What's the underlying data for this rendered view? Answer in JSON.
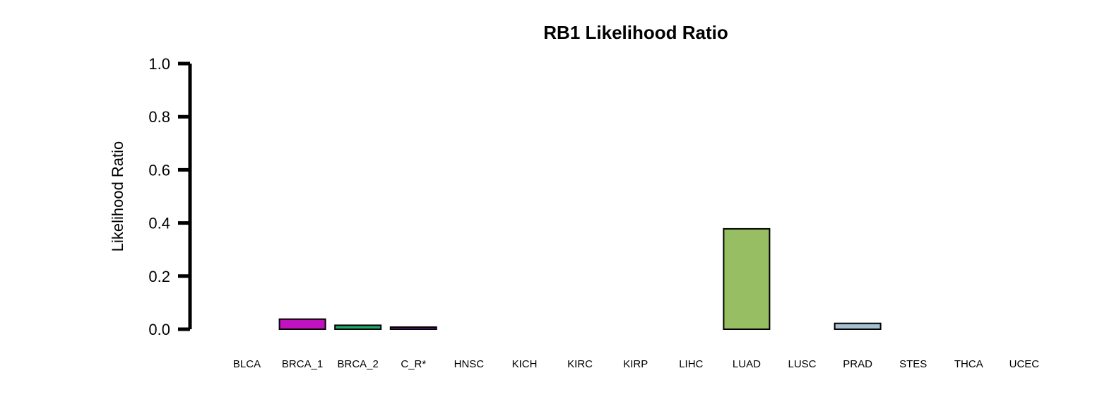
{
  "chart_data": {
    "type": "bar",
    "title": "RB1 Likelihood Ratio",
    "xlabel": "",
    "ylabel": "Likelihood Ratio",
    "ylim": [
      0,
      1.0
    ],
    "yticks": [
      "0.0",
      "0.2",
      "0.4",
      "0.6",
      "0.8",
      "1.0"
    ],
    "grid": false,
    "categories": [
      "BLCA",
      "BRCA_1",
      "BRCA_2",
      "C_R*",
      "HNSC",
      "KICH",
      "KIRC",
      "KIRP",
      "LIHC",
      "LUAD",
      "LUSC",
      "PRAD",
      "STES",
      "THCA",
      "UCEC"
    ],
    "values": [
      0.0,
      0.038,
      0.015,
      0.008,
      0.0,
      0.0,
      0.0,
      0.0,
      0.0,
      0.378,
      0.0,
      0.022,
      0.0,
      0.0,
      0.0
    ],
    "colors": [
      "#ffffff",
      "#c012be",
      "#1fa868",
      "#7e17a6",
      "#ffffff",
      "#ffffff",
      "#ffffff",
      "#ffffff",
      "#ffffff",
      "#97be62",
      "#ffffff",
      "#a5c0d0",
      "#ffffff",
      "#ffffff",
      "#ffffff"
    ]
  }
}
